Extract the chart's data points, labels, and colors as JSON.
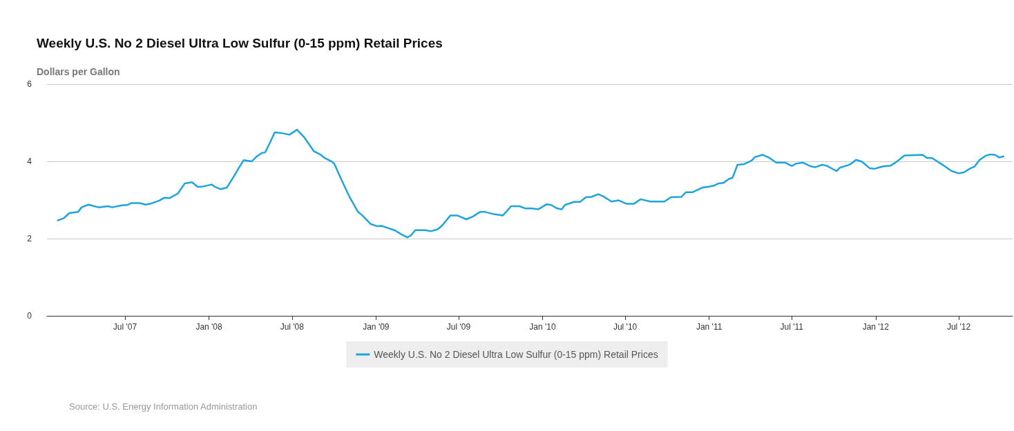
{
  "chart_data": {
    "type": "line",
    "title": "Weekly U.S. No 2 Diesel Ultra Low Sulfur (0-15 ppm) Retail Prices",
    "ylabel": "Dollars per Gallon",
    "annotations": [
      "Source: U.S. Energy Information Administration"
    ],
    "xlim": [
      "2007-01-11",
      "2012-10-27"
    ],
    "xticks": [
      {
        "value": "2007-07-01",
        "label": "Jul '07"
      },
      {
        "value": "2008-01-01",
        "label": "Jan '08"
      },
      {
        "value": "2008-07-01",
        "label": "Jul '08"
      },
      {
        "value": "2009-01-01",
        "label": "Jan '09"
      },
      {
        "value": "2009-07-01",
        "label": "Jul '09"
      },
      {
        "value": "2010-01-01",
        "label": "Jan '10"
      },
      {
        "value": "2010-07-01",
        "label": "Jul '10"
      },
      {
        "value": "2011-01-01",
        "label": "Jan '11"
      },
      {
        "value": "2011-07-01",
        "label": "Jul '11"
      },
      {
        "value": "2012-01-01",
        "label": "Jan '12"
      },
      {
        "value": "2012-07-01",
        "label": "Jul '12"
      }
    ],
    "ylim": [
      0,
      6
    ],
    "yticks": [
      0,
      2,
      4,
      6
    ],
    "grid": "y",
    "legend": "bottom",
    "marker": "none",
    "line_style": "solid",
    "series": [
      {
        "name": "Weekly U.S. No 2 Diesel Ultra Low Sulfur (0-15 ppm) Retail Prices",
        "color": "#1ea4dc",
        "x": [
          "2007-02-04",
          "2007-02-17",
          "2007-03-01",
          "2007-03-20",
          "2007-03-28",
          "2007-04-12",
          "2007-05-04",
          "2007-05-25",
          "2007-06-03",
          "2007-06-24",
          "2007-07-06",
          "2007-07-15",
          "2007-08-02",
          "2007-08-15",
          "2007-08-25",
          "2007-09-15",
          "2007-09-25",
          "2007-10-07",
          "2007-10-25",
          "2007-11-09",
          "2007-11-25",
          "2007-12-07",
          "2007-12-19",
          "2008-01-07",
          "2008-01-14",
          "2008-01-27",
          "2008-02-09",
          "2008-02-24",
          "2008-03-07",
          "2008-03-17",
          "2008-04-04",
          "2008-04-13",
          "2008-04-26",
          "2008-05-03",
          "2008-05-13",
          "2008-05-24",
          "2008-06-10",
          "2008-06-25",
          "2008-07-12",
          "2008-07-28",
          "2008-08-18",
          "2008-09-02",
          "2008-09-10",
          "2008-09-27",
          "2008-10-02",
          "2008-10-17",
          "2008-11-04",
          "2008-11-22",
          "2008-12-02",
          "2008-12-20",
          "2009-01-04",
          "2009-01-13",
          "2009-01-26",
          "2009-02-12",
          "2009-02-27",
          "2009-03-11",
          "2009-03-19",
          "2009-03-28",
          "2009-04-19",
          "2009-05-01",
          "2009-05-16",
          "2009-05-26",
          "2009-06-13",
          "2009-06-28",
          "2009-07-18",
          "2009-08-01",
          "2009-08-17",
          "2009-08-28",
          "2009-09-14",
          "2009-10-06",
          "2009-10-24",
          "2009-11-11",
          "2009-11-25",
          "2009-12-08",
          "2009-12-23",
          "2010-01-10",
          "2010-01-20",
          "2010-02-02",
          "2010-02-12",
          "2010-02-19",
          "2010-03-11",
          "2010-03-24",
          "2010-04-06",
          "2010-04-18",
          "2010-05-03",
          "2010-05-13",
          "2010-06-01",
          "2010-06-17",
          "2010-07-04",
          "2010-07-20",
          "2010-08-04",
          "2010-08-25",
          "2010-09-14",
          "2010-09-25",
          "2010-10-09",
          "2010-11-01",
          "2010-11-11",
          "2010-11-25",
          "2010-12-17",
          "2011-01-02",
          "2011-01-11",
          "2011-01-22",
          "2011-02-01",
          "2011-02-14",
          "2011-02-21",
          "2011-02-26",
          "2011-03-04",
          "2011-03-19",
          "2011-04-04",
          "2011-04-11",
          "2011-04-28",
          "2011-05-13",
          "2011-05-28",
          "2011-06-16",
          "2011-07-01",
          "2011-07-10",
          "2011-07-25",
          "2011-08-12",
          "2011-08-22",
          "2011-09-05",
          "2011-09-15",
          "2011-10-07",
          "2011-10-15",
          "2011-11-01",
          "2011-11-07",
          "2011-11-19",
          "2011-12-02",
          "2011-12-19",
          "2011-12-30",
          "2012-01-17",
          "2012-02-03",
          "2012-02-16",
          "2012-03-04",
          "2012-04-13",
          "2012-04-22",
          "2012-05-03",
          "2012-05-28",
          "2012-06-15",
          "2012-07-01",
          "2012-07-13",
          "2012-07-25",
          "2012-08-05",
          "2012-08-15",
          "2012-08-28",
          "2012-09-08",
          "2012-09-18",
          "2012-09-28",
          "2012-10-07"
        ],
        "values": [
          2.47,
          2.53,
          2.66,
          2.69,
          2.81,
          2.88,
          2.81,
          2.84,
          2.81,
          2.86,
          2.87,
          2.92,
          2.92,
          2.88,
          2.9,
          2.99,
          3.06,
          3.05,
          3.17,
          3.43,
          3.46,
          3.34,
          3.35,
          3.4,
          3.34,
          3.28,
          3.32,
          3.6,
          3.84,
          4.03,
          4.0,
          4.11,
          4.22,
          4.23,
          4.47,
          4.75,
          4.73,
          4.69,
          4.82,
          4.62,
          4.26,
          4.17,
          4.09,
          3.99,
          3.93,
          3.53,
          3.08,
          2.7,
          2.6,
          2.38,
          2.32,
          2.33,
          2.28,
          2.21,
          2.1,
          2.03,
          2.09,
          2.22,
          2.22,
          2.19,
          2.24,
          2.34,
          2.6,
          2.6,
          2.5,
          2.57,
          2.69,
          2.69,
          2.64,
          2.6,
          2.84,
          2.84,
          2.78,
          2.78,
          2.76,
          2.89,
          2.87,
          2.78,
          2.76,
          2.87,
          2.95,
          2.95,
          3.07,
          3.08,
          3.15,
          3.1,
          2.96,
          2.99,
          2.9,
          2.9,
          3.02,
          2.96,
          2.96,
          2.96,
          3.07,
          3.08,
          3.2,
          3.2,
          3.32,
          3.35,
          3.37,
          3.43,
          3.44,
          3.55,
          3.57,
          3.72,
          3.91,
          3.93,
          4.02,
          4.11,
          4.17,
          4.09,
          3.97,
          3.97,
          3.88,
          3.94,
          3.97,
          3.87,
          3.85,
          3.91,
          3.89,
          3.75,
          3.84,
          3.9,
          3.93,
          4.04,
          3.99,
          3.82,
          3.81,
          3.87,
          3.89,
          3.99,
          4.15,
          4.17,
          4.09,
          4.09,
          3.9,
          3.75,
          3.69,
          3.72,
          3.81,
          3.87,
          4.03,
          4.14,
          4.18,
          4.17,
          4.1,
          4.13
        ]
      }
    ]
  }
}
